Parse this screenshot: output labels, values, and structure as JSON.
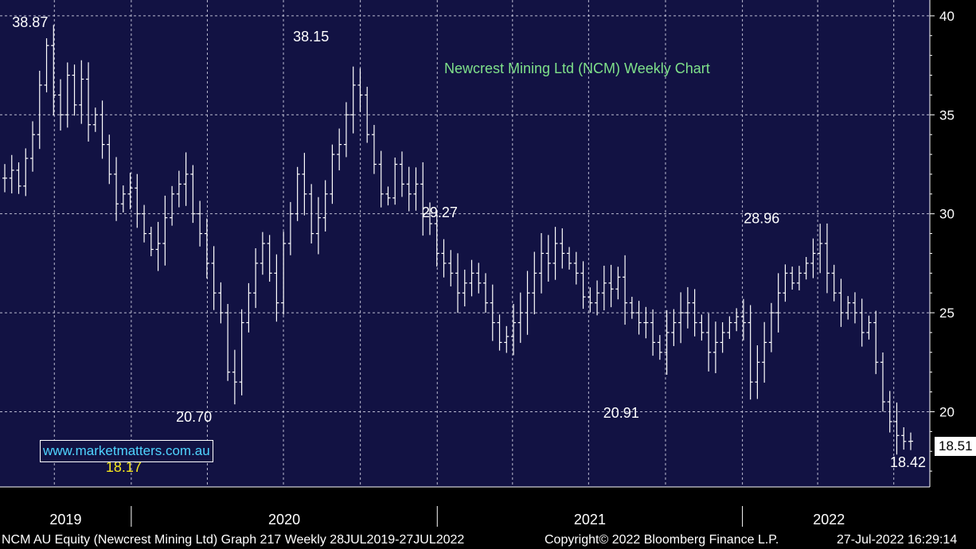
{
  "chart_data": {
    "type": "ohlc",
    "title": "Newcrest Mining Ltd (NCM) Weekly Chart",
    "y_ticks": [
      20,
      25,
      30,
      35,
      40
    ],
    "ylim": [
      16.2,
      40.8
    ],
    "x_labels": [
      "2019",
      "2020",
      "2021",
      "2022"
    ],
    "x_range": [
      "2019-07-28",
      "2022-07-27"
    ],
    "grid": true,
    "last_price": "18.51",
    "annotations": [
      {
        "text": "38.87",
        "date": "2019-09-02",
        "price": 38.87,
        "color": "white"
      },
      {
        "text": "18.17",
        "date": "2019-12-23",
        "price": 18.17,
        "color": "yellow"
      },
      {
        "text": "20.70",
        "date": "2020-03-16",
        "price": 20.7,
        "color": "white"
      },
      {
        "text": "38.15",
        "date": "2020-08-03",
        "price": 38.15,
        "color": "white"
      },
      {
        "text": "29.27",
        "date": "2021-01-04",
        "price": 29.27,
        "color": "white"
      },
      {
        "text": "20.91",
        "date": "2021-08-09",
        "price": 20.91,
        "color": "white"
      },
      {
        "text": "28.96",
        "date": "2022-01-24",
        "price": 28.96,
        "color": "white"
      },
      {
        "text": "18.42",
        "date": "2022-07-18",
        "price": 18.42,
        "color": "white"
      }
    ],
    "weekly_close": [
      31.8,
      32.2,
      31.4,
      32.8,
      34.0,
      36.5,
      38.5,
      36.0,
      35.0,
      37.0,
      35.5,
      36.8,
      34.5,
      35.0,
      33.5,
      32.0,
      30.5,
      31.0,
      31.3,
      30.0,
      29.0,
      28.2,
      28.5,
      29.8,
      31.0,
      31.5,
      32.0,
      30.0,
      29.0,
      27.5,
      26.0,
      25.0,
      22.0,
      21.5,
      24.5,
      26.0,
      27.5,
      28.5,
      27.0,
      25.5,
      28.5,
      30.0,
      32.0,
      31.0,
      29.0,
      29.8,
      31.0,
      33.0,
      33.5,
      35.0,
      36.5,
      36.0,
      34.0,
      32.5,
      31.0,
      30.8,
      32.5,
      31.5,
      31.0,
      31.5,
      30.0,
      29.5,
      28.0,
      27.5,
      27.0,
      26.0,
      26.5,
      27.0,
      26.5,
      25.5,
      24.5,
      23.5,
      23.8,
      24.5,
      25.0,
      26.0,
      27.0,
      28.0,
      27.5,
      28.5,
      28.0,
      27.5,
      27.0,
      25.8,
      25.5,
      26.0,
      26.5,
      26.2,
      26.8,
      25.5,
      25.0,
      24.5,
      24.5,
      23.5,
      23.0,
      24.0,
      24.5,
      25.0,
      25.5,
      24.5,
      24.0,
      23.0,
      23.5,
      24.0,
      24.5,
      24.8,
      24.5,
      21.5,
      22.5,
      23.5,
      25.0,
      26.0,
      27.0,
      26.5,
      27.0,
      27.5,
      28.0,
      28.5,
      27.0,
      26.0,
      25.0,
      25.5,
      25.0,
      24.0,
      24.5,
      22.5,
      20.5,
      19.5,
      18.8,
      18.5,
      18.51
    ]
  },
  "website": "www.marketmatters.com.au",
  "footer": {
    "security": "NCM AU Equity (Newcrest Mining Ltd) Graph 217  Weekly 28JUL2019-27JUL2022",
    "copyright": "Copyright© 2022 Bloomberg Finance L.P.",
    "timestamp": "27-Jul-2022 16:29:14"
  }
}
